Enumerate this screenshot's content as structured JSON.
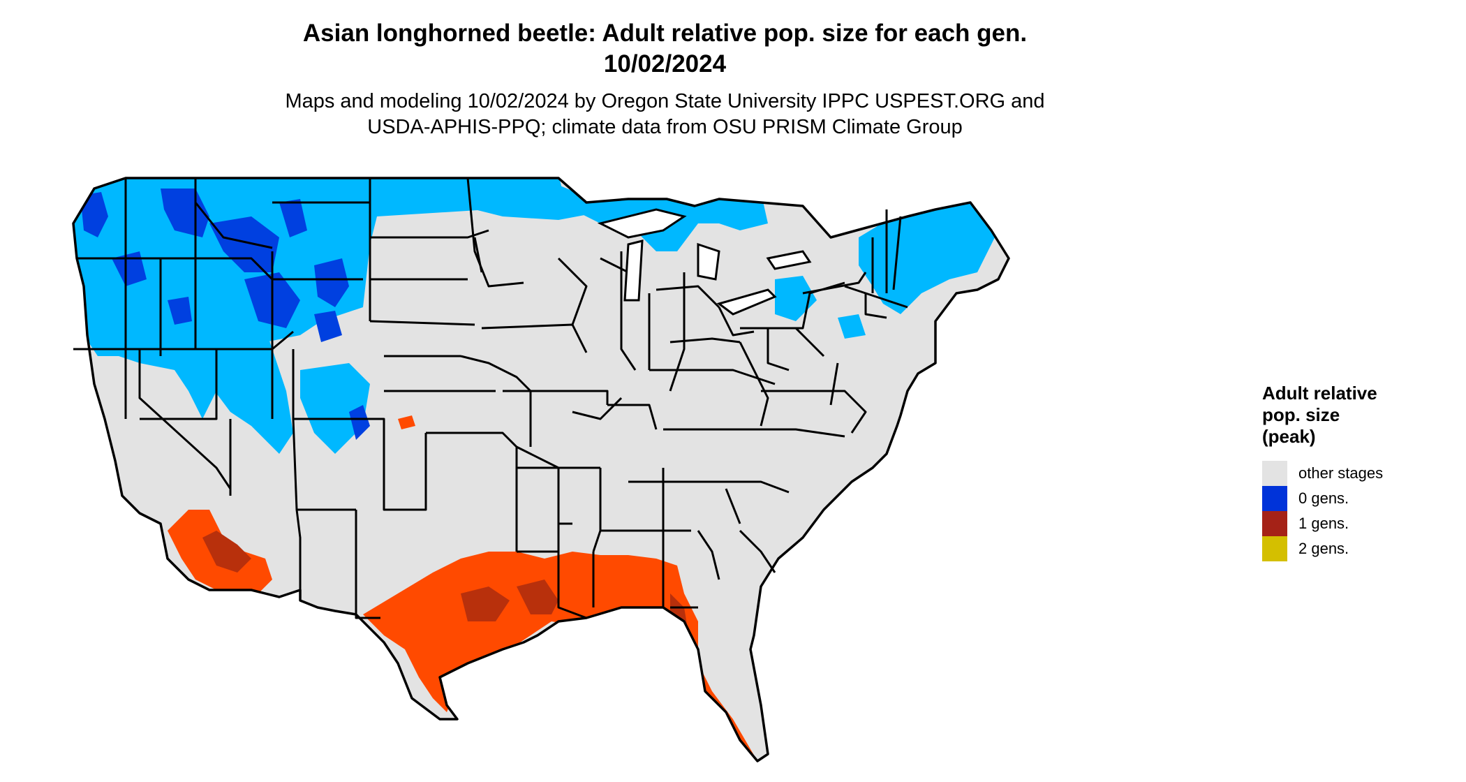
{
  "title_line1": "Asian longhorned beetle: Adult relative pop. size for each gen.",
  "title_line2": "10/02/2024",
  "subtitle_line1": "Maps and modeling 10/02/2024 by Oregon State University IPPC USPEST.ORG and",
  "subtitle_line2": "USDA-APHIS-PPQ; climate data from OSU PRISM Climate Group",
  "legend": {
    "title": "Adult relative\npop. size\n(peak)",
    "items": [
      {
        "label": "other stages",
        "color": "#e3e3e3"
      },
      {
        "label": "0 gens.",
        "color": "#0033d9"
      },
      {
        "label": "1 gens.",
        "color": "#a52217"
      },
      {
        "label": "2 gens.",
        "color": "#d4bf00"
      }
    ]
  },
  "map_colors": {
    "background_land": "#e3e3e3",
    "cold_light": "#00b8ff",
    "cold_dark": "#0040e0",
    "warm_light": "#ff4a00",
    "warm_dark": "#b8300c",
    "borders": "#000000"
  }
}
